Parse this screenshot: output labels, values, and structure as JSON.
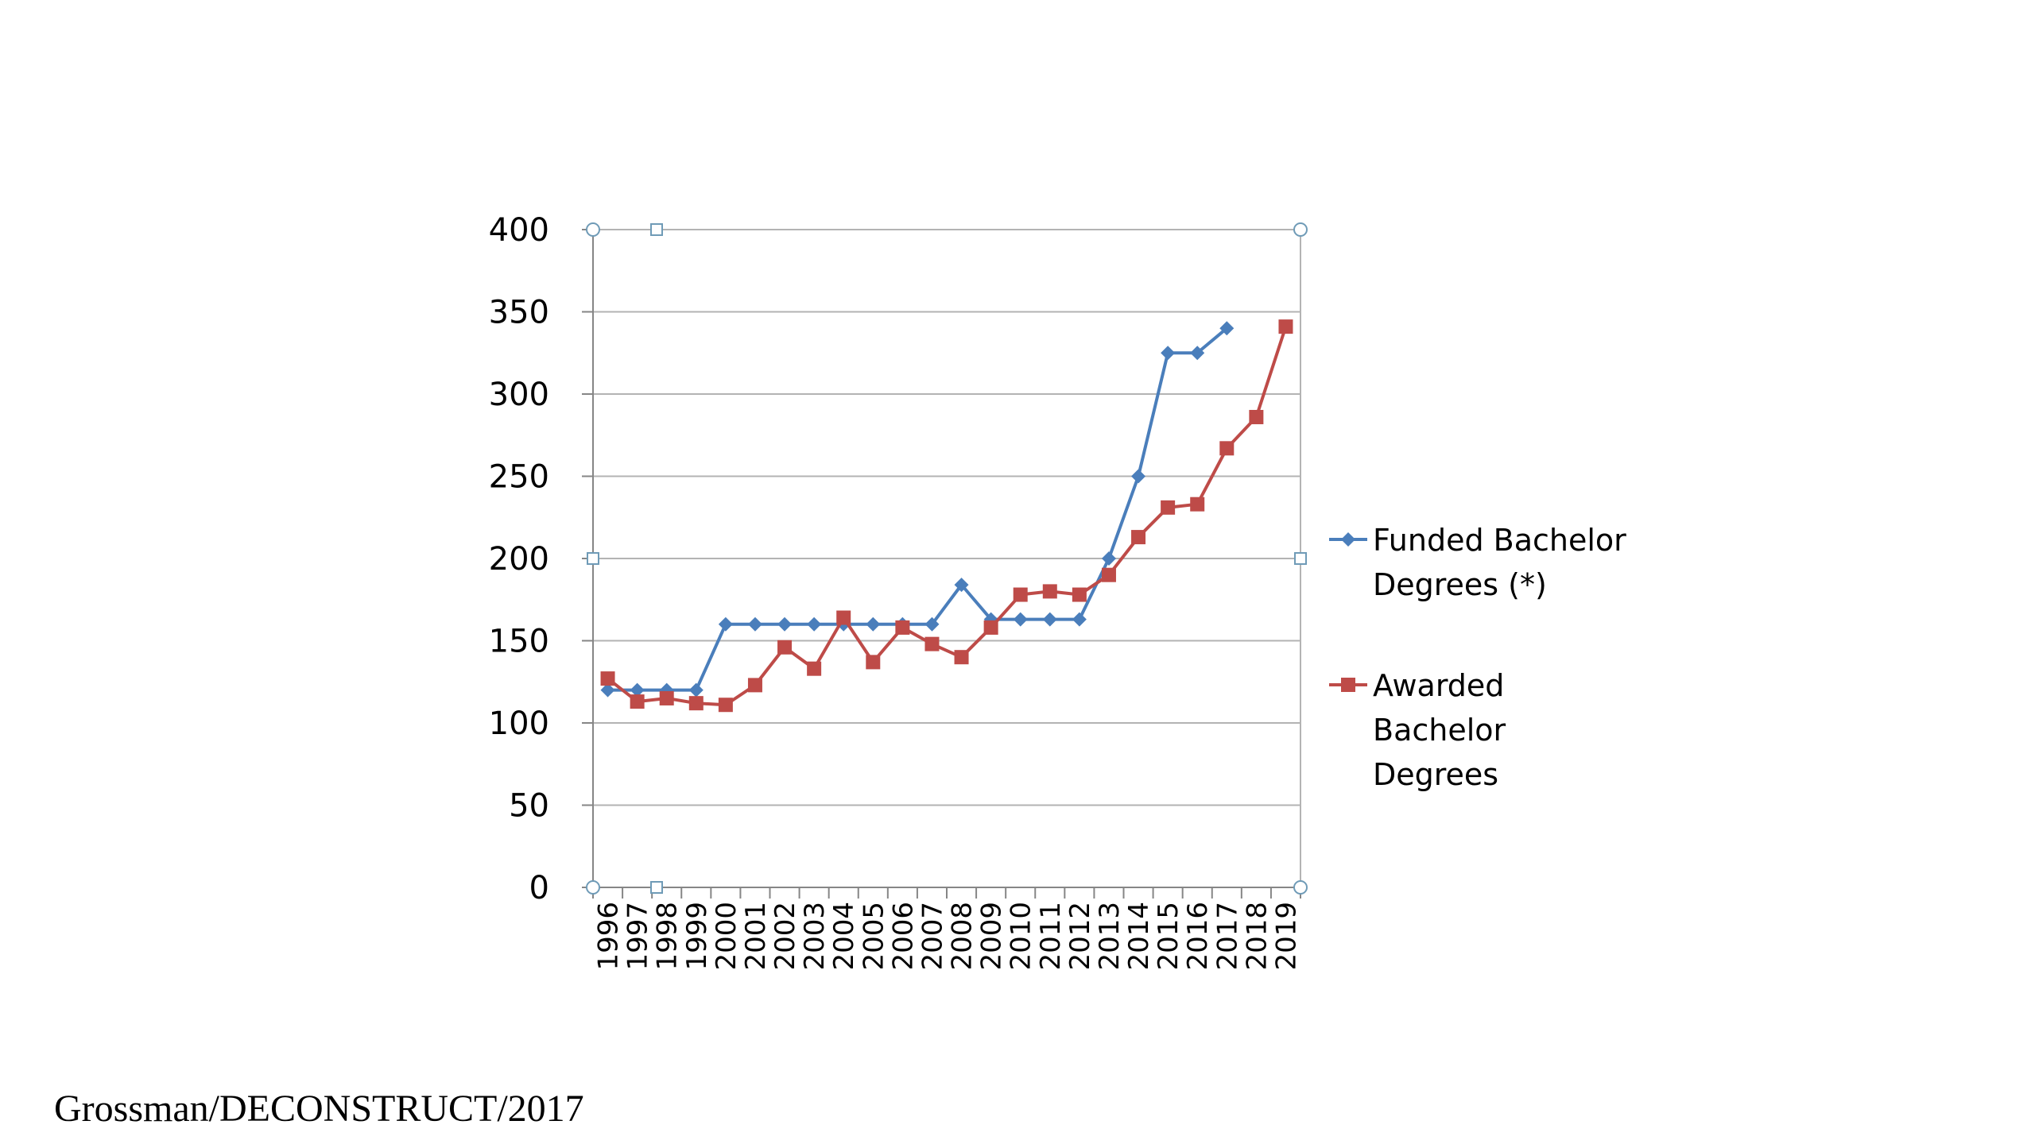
{
  "credit": "Grossman/DECONSTRUCT/2017",
  "colors": {
    "funded": "#4a7ebb",
    "awarded": "#be4b48",
    "grid": "#b3b3b3",
    "axis": "#868686",
    "text": "#000000"
  },
  "chart_data": {
    "type": "line",
    "title": "",
    "xlabel": "",
    "ylabel": "",
    "ylim": [
      0,
      400
    ],
    "yticks": [
      "0",
      "50",
      "100",
      "150",
      "200",
      "250",
      "300",
      "350",
      "400"
    ],
    "grid": true,
    "legend_position": "right",
    "categories": [
      "1996",
      "1997",
      "1998",
      "1999",
      "2000",
      "2001",
      "2002",
      "2003",
      "2004",
      "2005",
      "2006",
      "2007",
      "2008",
      "2009",
      "2010",
      "2011",
      "2012",
      "2013",
      "2014",
      "2015",
      "2016",
      "2017",
      "2018",
      "2019"
    ],
    "series": [
      {
        "name": "Funded Bachelor Degrees (*)",
        "legend_lines": [
          "Funded Bachelor",
          "Degrees (*)"
        ],
        "marker": "diamond",
        "color": "#4a7ebb",
        "values": [
          120,
          120,
          120,
          120,
          160,
          160,
          160,
          160,
          160,
          160,
          160,
          160,
          184,
          163,
          163,
          163,
          163,
          200,
          250,
          325,
          325,
          340,
          null,
          null
        ]
      },
      {
        "name": "Awarded Bachelor Degrees",
        "legend_lines": [
          "Awarded",
          "Bachelor",
          "Degrees"
        ],
        "marker": "square",
        "color": "#be4b48",
        "values": [
          127,
          113,
          115,
          112,
          111,
          123,
          146,
          133,
          164,
          137,
          158,
          148,
          140,
          158,
          178,
          180,
          178,
          190,
          213,
          231,
          233,
          267,
          286,
          341
        ]
      }
    ]
  }
}
